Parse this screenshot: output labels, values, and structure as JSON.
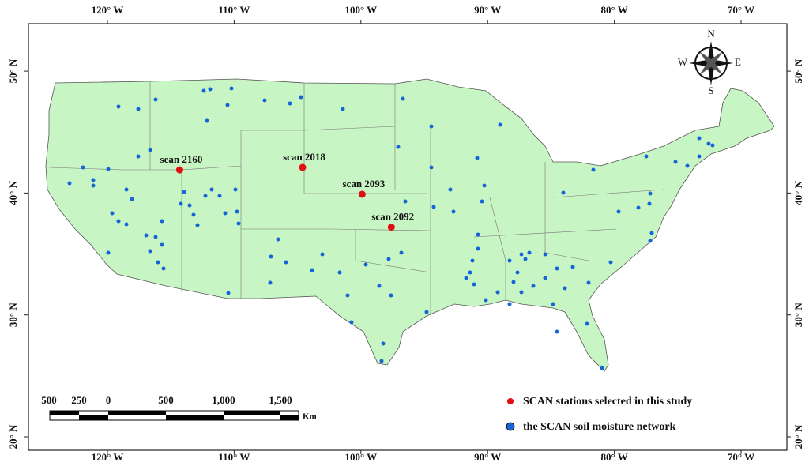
{
  "map": {
    "lon_ticks": [
      {
        "value": -120,
        "label": "120° W"
      },
      {
        "value": -110,
        "label": "110° W"
      },
      {
        "value": -100,
        "label": "100° W"
      },
      {
        "value": -90,
        "label": "90° W"
      },
      {
        "value": -80,
        "label": "80° W"
      },
      {
        "value": -70,
        "label": "70° W"
      }
    ],
    "lat_ticks": [
      {
        "value": 20,
        "label": "20° N"
      },
      {
        "value": 30,
        "label": "30° N"
      },
      {
        "value": 40,
        "label": "40° N"
      },
      {
        "value": 50,
        "label": "50° N"
      }
    ],
    "selected_stations": [
      {
        "name": "scan 2160",
        "lon": -114.3,
        "lat": 41.9
      },
      {
        "name": "scan 2018",
        "lon": -104.6,
        "lat": 42.1
      },
      {
        "name": "scan 2093",
        "lon": -99.9,
        "lat": 39.9
      },
      {
        "name": "scan 2092",
        "lon": -97.6,
        "lat": 37.2
      }
    ],
    "compass": {
      "n": "N",
      "s": "S",
      "e": "E",
      "w": "W"
    },
    "scale_bar": {
      "labels": [
        "500",
        "250",
        "0",
        "500",
        "1,000",
        "1,500"
      ],
      "unit": "Km"
    },
    "legend": [
      "SCAN stations selected in this study",
      "the SCAN soil moisture network"
    ]
  }
}
